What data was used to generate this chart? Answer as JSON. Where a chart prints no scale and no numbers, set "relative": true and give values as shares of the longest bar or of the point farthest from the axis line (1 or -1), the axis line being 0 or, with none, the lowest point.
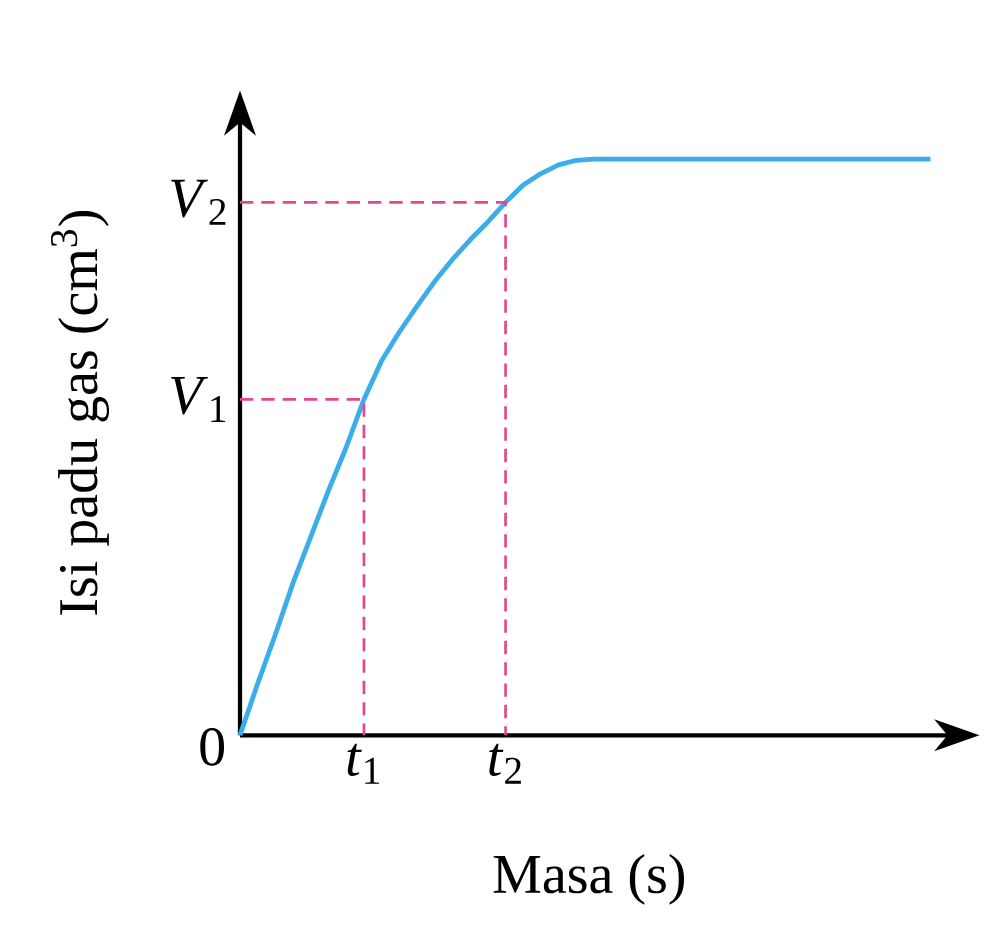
{
  "chart_data": {
    "type": "line",
    "xlabel": "Masa (s)",
    "ylabel": "Isi padu gas (cm$^{3}$)",
    "relative": true,
    "categories": [
      null,
      null,
      null,
      null,
      null,
      null,
      null,
      "*t*$_{1}$",
      null,
      null,
      null,
      null,
      null,
      null,
      null,
      "*t*$_{2}$",
      null,
      null,
      null,
      null,
      null,
      null,
      null,
      null,
      null,
      null,
      null,
      null,
      null,
      null,
      null,
      null,
      null,
      null,
      null,
      null,
      null,
      null,
      null,
      null
    ],
    "series": [
      {
        "color": "#3badea",
        "values": [
          0,
          0.09,
          0.175,
          0.265,
          0.345,
          0.425,
          0.5,
          0.583,
          0.65,
          0.7,
          0.745,
          0.788,
          0.826,
          0.86,
          0.891,
          0.925,
          0.955,
          0.975,
          0.99,
          0.998,
          1,
          1,
          1,
          1,
          1,
          1,
          1,
          1,
          1,
          1,
          1,
          1,
          1,
          1,
          1,
          1,
          1,
          1,
          1,
          1
        ]
      }
    ],
    "ref_lines": [
      {
        "axis": "y",
        "value": 0.583,
        "label": "*V*$_{1}$",
        "color": "#e5468f",
        "line_style": "dashed"
      },
      {
        "axis": "y",
        "value": 0.925,
        "label": "*V*$_{2}$",
        "color": "#e5468f",
        "line_style": "dashed"
      }
    ],
    "annotations": [
      "0"
    ],
    "marker": "none",
    "line_style": "solid"
  }
}
